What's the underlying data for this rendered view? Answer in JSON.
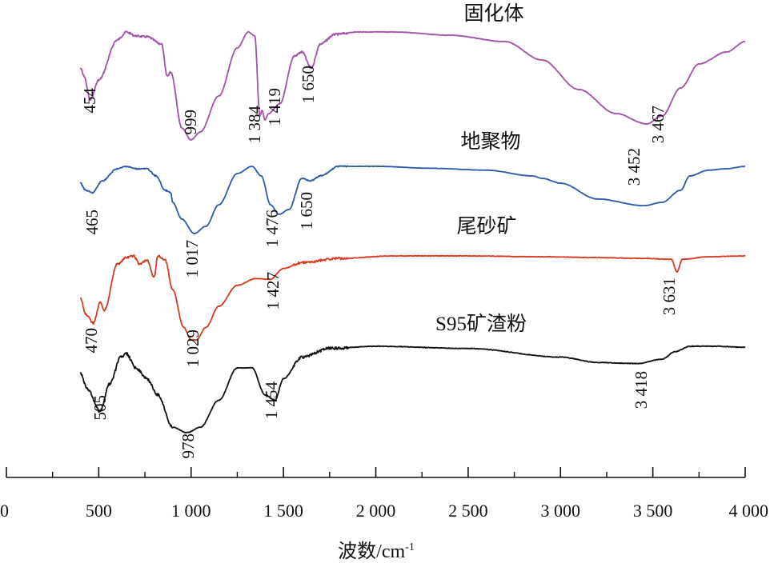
{
  "chart_data": {
    "type": "line",
    "xlabel": "波数/cm",
    "xlabel_sup": "-1",
    "xlim": [
      0,
      4000
    ],
    "xticks": [
      0,
      500,
      1000,
      1500,
      2000,
      2500,
      3000,
      3500,
      4000
    ],
    "xtick_labels": [
      "0",
      "500",
      "1 000",
      "1 500",
      "2 000",
      "2 500",
      "3 000",
      "3 500",
      "4 000"
    ],
    "y_axis_visible": false,
    "grid": false,
    "legend": "inline labels above each curve",
    "series": [
      {
        "name": "固化体",
        "color": "#a350a8",
        "points": [
          [
            400,
            0.45
          ],
          [
            420,
            0.55
          ],
          [
            454,
            0.85
          ],
          [
            500,
            0.6
          ],
          [
            600,
            0.1
          ],
          [
            650,
            0.0
          ],
          [
            700,
            0.05
          ],
          [
            760,
            0.06
          ],
          [
            840,
            0.15
          ],
          [
            870,
            0.55
          ],
          [
            890,
            0.5
          ],
          [
            950,
            1.2
          ],
          [
            999,
            1.35
          ],
          [
            1050,
            1.25
          ],
          [
            1150,
            0.8
          ],
          [
            1250,
            0.2
          ],
          [
            1310,
            0.0
          ],
          [
            1345,
            0.05
          ],
          [
            1372,
            1.05
          ],
          [
            1384,
            0.98
          ],
          [
            1400,
            1.1
          ],
          [
            1419,
            1.02
          ],
          [
            1480,
            0.9
          ],
          [
            1560,
            0.3
          ],
          [
            1600,
            0.25
          ],
          [
            1650,
            0.45
          ],
          [
            1700,
            0.15
          ],
          [
            1780,
            0.03
          ],
          [
            1900,
            0.0
          ],
          [
            2100,
            0.0
          ],
          [
            2400,
            0.04
          ],
          [
            2700,
            0.12
          ],
          [
            2900,
            0.35
          ],
          [
            3100,
            0.72
          ],
          [
            3300,
            1.02
          ],
          [
            3467,
            1.15
          ],
          [
            3550,
            1.05
          ],
          [
            3650,
            0.7
          ],
          [
            3750,
            0.4
          ],
          [
            3900,
            0.25
          ],
          [
            4000,
            0.12
          ]
        ]
      },
      {
        "name": "地聚物",
        "color": "#2d5aa8",
        "points": [
          [
            400,
            0.35
          ],
          [
            430,
            0.5
          ],
          [
            465,
            0.55
          ],
          [
            520,
            0.3
          ],
          [
            600,
            0.05
          ],
          [
            650,
            0.0
          ],
          [
            700,
            0.05
          ],
          [
            760,
            0.05
          ],
          [
            810,
            0.2
          ],
          [
            860,
            0.5
          ],
          [
            890,
            0.55
          ],
          [
            900,
            0.75
          ],
          [
            950,
            1.1
          ],
          [
            1017,
            1.4
          ],
          [
            1080,
            1.25
          ],
          [
            1150,
            0.8
          ],
          [
            1250,
            0.15
          ],
          [
            1330,
            0.0
          ],
          [
            1380,
            0.2
          ],
          [
            1430,
            0.8
          ],
          [
            1476,
            1.0
          ],
          [
            1530,
            0.9
          ],
          [
            1600,
            0.25
          ],
          [
            1650,
            0.3
          ],
          [
            1700,
            0.2
          ],
          [
            1800,
            0.0
          ],
          [
            2000,
            0.0
          ],
          [
            2300,
            0.04
          ],
          [
            2600,
            0.08
          ],
          [
            2850,
            0.2
          ],
          [
            2900,
            0.25
          ],
          [
            3000,
            0.35
          ],
          [
            3200,
            0.68
          ],
          [
            3452,
            0.82
          ],
          [
            3550,
            0.75
          ],
          [
            3650,
            0.5
          ],
          [
            3700,
            0.2
          ],
          [
            3800,
            0.08
          ],
          [
            3900,
            0.05
          ],
          [
            4000,
            0.0
          ]
        ]
      },
      {
        "name": "尾砂矿",
        "color": "#d63a1e",
        "points": [
          [
            400,
            0.5
          ],
          [
            430,
            0.7
          ],
          [
            470,
            0.8
          ],
          [
            510,
            0.55
          ],
          [
            530,
            0.65
          ],
          [
            600,
            0.1
          ],
          [
            650,
            0.02
          ],
          [
            690,
            0.0
          ],
          [
            720,
            0.1
          ],
          [
            760,
            0.05
          ],
          [
            800,
            0.25
          ],
          [
            820,
            0.0
          ],
          [
            860,
            0.05
          ],
          [
            900,
            0.4
          ],
          [
            960,
            0.85
          ],
          [
            1000,
            1.0
          ],
          [
            1029,
            1.0
          ],
          [
            1080,
            0.85
          ],
          [
            1150,
            0.6
          ],
          [
            1250,
            0.35
          ],
          [
            1350,
            0.27
          ],
          [
            1427,
            0.28
          ],
          [
            1500,
            0.15
          ],
          [
            1600,
            0.08
          ],
          [
            1800,
            0.03
          ],
          [
            2100,
            0.0
          ],
          [
            2500,
            0.0
          ],
          [
            2900,
            0.01
          ],
          [
            3200,
            0.02
          ],
          [
            3450,
            0.03
          ],
          [
            3600,
            0.04
          ],
          [
            3631,
            0.19
          ],
          [
            3660,
            0.04
          ],
          [
            3800,
            0.01
          ],
          [
            4000,
            0.0
          ]
        ]
      },
      {
        "name": "S95矿渣粉",
        "color": "#111111",
        "points": [
          [
            400,
            0.25
          ],
          [
            440,
            0.4
          ],
          [
            505,
            0.6
          ],
          [
            560,
            0.35
          ],
          [
            620,
            0.1
          ],
          [
            650,
            0.07
          ],
          [
            700,
            0.2
          ],
          [
            760,
            0.3
          ],
          [
            820,
            0.45
          ],
          [
            900,
            0.75
          ],
          [
            978,
            0.8
          ],
          [
            1050,
            0.75
          ],
          [
            1150,
            0.5
          ],
          [
            1250,
            0.2
          ],
          [
            1330,
            0.2
          ],
          [
            1400,
            0.45
          ],
          [
            1454,
            0.5
          ],
          [
            1500,
            0.3
          ],
          [
            1600,
            0.1
          ],
          [
            1750,
            0.02
          ],
          [
            2000,
            0.0
          ],
          [
            2500,
            0.02
          ],
          [
            3000,
            0.1
          ],
          [
            3200,
            0.15
          ],
          [
            3418,
            0.16
          ],
          [
            3550,
            0.12
          ],
          [
            3620,
            0.05
          ],
          [
            3700,
            0.0
          ],
          [
            3850,
            0.0
          ],
          [
            4000,
            0.01
          ]
        ]
      }
    ],
    "peak_labels": [
      {
        "series": 0,
        "text": "454"
      },
      {
        "series": 0,
        "text": "999"
      },
      {
        "series": 0,
        "text": "1 384"
      },
      {
        "series": 0,
        "text": "1 419"
      },
      {
        "series": 0,
        "text": "1 650"
      },
      {
        "series": 0,
        "text": "3 467"
      },
      {
        "series": 1,
        "text": "465"
      },
      {
        "series": 1,
        "text": "1 017"
      },
      {
        "series": 1,
        "text": "1 476"
      },
      {
        "series": 1,
        "text": "1 650"
      },
      {
        "series": 1,
        "text": "3 452"
      },
      {
        "series": 2,
        "text": "470"
      },
      {
        "series": 2,
        "text": "1 029"
      },
      {
        "series": 2,
        "text": "1 427"
      },
      {
        "series": 2,
        "text": "3 631"
      },
      {
        "series": 3,
        "text": "505"
      },
      {
        "series": 3,
        "text": "978"
      },
      {
        "series": 3,
        "text": "1 454"
      },
      {
        "series": 3,
        "text": "3 418"
      }
    ]
  }
}
